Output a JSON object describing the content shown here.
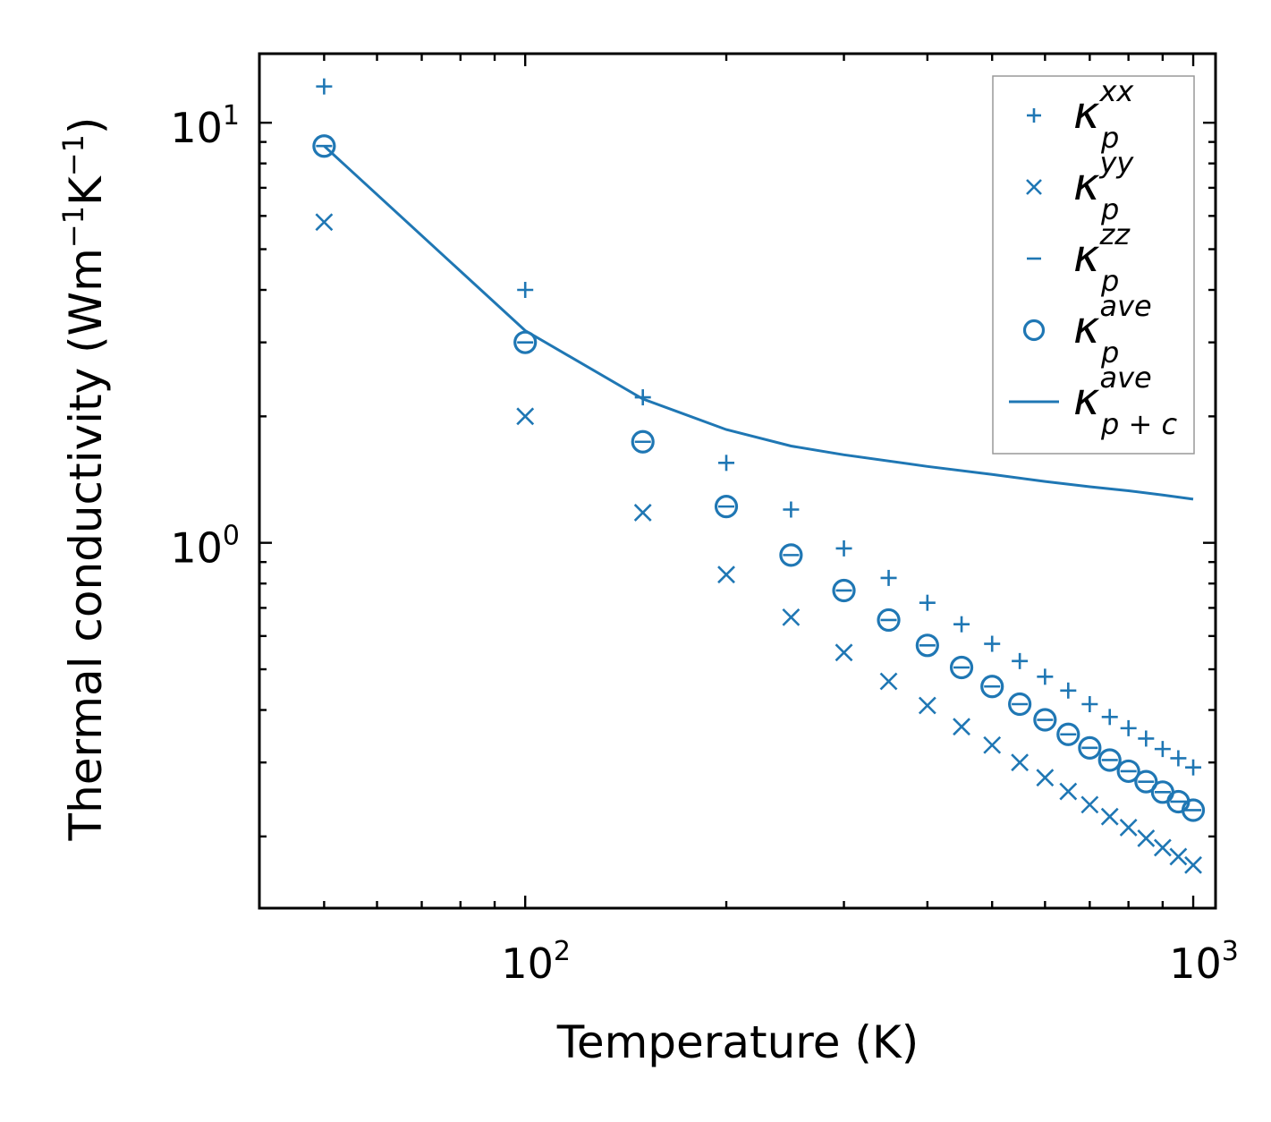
{
  "chart_data": {
    "type": "scatter",
    "xscale": "log",
    "yscale": "log",
    "xlim": [
      40,
      1080
    ],
    "ylim": [
      0.135,
      14.6
    ],
    "xlabel": "Temperature (K)",
    "ylabel_parts": {
      "base": "Thermal conductivity (Wm",
      "exp1": "−1",
      "mid": "K",
      "exp2": "−1",
      "end": ")"
    },
    "xticks": [
      {
        "value": 100,
        "base": "10",
        "exp": "2"
      },
      {
        "value": 1000,
        "base": "10",
        "exp": "3"
      }
    ],
    "yticks": [
      {
        "value": 1,
        "base": "10",
        "exp": "0"
      },
      {
        "value": 10,
        "base": "10",
        "exp": "1"
      }
    ],
    "color": "#1f77b4",
    "x": [
      50,
      100,
      150,
      200,
      250,
      300,
      350,
      400,
      450,
      500,
      550,
      600,
      650,
      700,
      750,
      800,
      850,
      900,
      950,
      1000
    ],
    "series": [
      {
        "name": "kappa_p_xx",
        "marker": "plus",
        "label": {
          "base": "κ",
          "sub": "p",
          "sup": "xx"
        },
        "values": [
          12.2,
          4.0,
          2.22,
          1.55,
          1.2,
          0.97,
          0.825,
          0.72,
          0.64,
          0.575,
          0.523,
          0.48,
          0.445,
          0.413,
          0.385,
          0.362,
          0.342,
          0.323,
          0.307,
          0.292
        ]
      },
      {
        "name": "kappa_p_yy",
        "marker": "x",
        "label": {
          "base": "κ",
          "sub": "p",
          "sup": "yy"
        },
        "values": [
          5.8,
          2.0,
          1.18,
          0.84,
          0.665,
          0.548,
          0.468,
          0.41,
          0.365,
          0.33,
          0.3,
          0.276,
          0.256,
          0.238,
          0.223,
          0.21,
          0.198,
          0.188,
          0.179,
          0.171
        ]
      },
      {
        "name": "kappa_p_zz",
        "marker": "hline",
        "label": {
          "base": "κ",
          "sub": "p",
          "sup": "zz"
        },
        "values": [
          8.8,
          3.0,
          1.74,
          1.22,
          0.935,
          0.77,
          0.655,
          0.57,
          0.505,
          0.455,
          0.413,
          0.379,
          0.35,
          0.325,
          0.304,
          0.286,
          0.27,
          0.255,
          0.242,
          0.231
        ]
      },
      {
        "name": "kappa_p_ave",
        "marker": "circle",
        "label": {
          "base": "κ",
          "sub": "p",
          "sup": "ave"
        },
        "values": [
          8.8,
          3.0,
          1.74,
          1.22,
          0.935,
          0.77,
          0.655,
          0.57,
          0.505,
          0.455,
          0.413,
          0.379,
          0.35,
          0.325,
          0.304,
          0.286,
          0.27,
          0.255,
          0.242,
          0.231
        ]
      },
      {
        "name": "kappa_pc_ave",
        "marker": "line",
        "label": {
          "base": "κ",
          "sub": "p + c",
          "sup": "ave"
        },
        "x": [
          50,
          100,
          150,
          200,
          250,
          300,
          400,
          500,
          600,
          700,
          800,
          900,
          1000
        ],
        "values": [
          8.8,
          3.2,
          2.2,
          1.86,
          1.7,
          1.62,
          1.52,
          1.455,
          1.4,
          1.36,
          1.33,
          1.3,
          1.27
        ]
      }
    ],
    "legend_position": "top-right"
  }
}
